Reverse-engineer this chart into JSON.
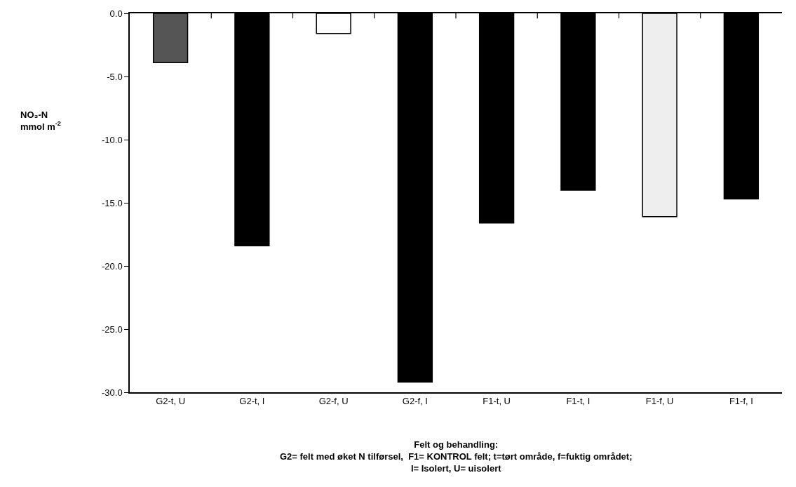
{
  "chart_data": {
    "type": "bar",
    "categories": [
      "G2-t, U",
      "G2-t, I",
      "G2-f, U",
      "G2-f, I",
      "F1-t, U",
      "F1-t, I",
      "F1-f, U",
      "F1-f, I"
    ],
    "values": [
      -3.9,
      -18.4,
      -1.6,
      -29.2,
      -16.6,
      -14.0,
      -16.1,
      -14.7
    ],
    "colors": [
      "#555555",
      "#000000",
      "#ffffff",
      "#000000",
      "#000000",
      "#000000",
      "#eeeeee",
      "#000000"
    ],
    "ylim": [
      -30,
      0
    ],
    "yticks": [
      {
        "value": 0,
        "label": "0.0"
      },
      {
        "value": -5,
        "label": "-5.0"
      },
      {
        "value": -10,
        "label": "-10.0"
      },
      {
        "value": -15,
        "label": "-15.0"
      },
      {
        "value": -20,
        "label": "-20.0"
      },
      {
        "value": -25,
        "label": "-25.0"
      },
      {
        "value": -30,
        "label": "-30.0"
      }
    ],
    "ylabel": "NO₃-N\nmmol m$^{-2}$",
    "xlabel": "Felt og behandling:\nG2= felt med øket N tilførsel,  F1= KONTROL felt; t=tørt område, f=fuktig området;\nI= Isolert, U= uisolert"
  }
}
